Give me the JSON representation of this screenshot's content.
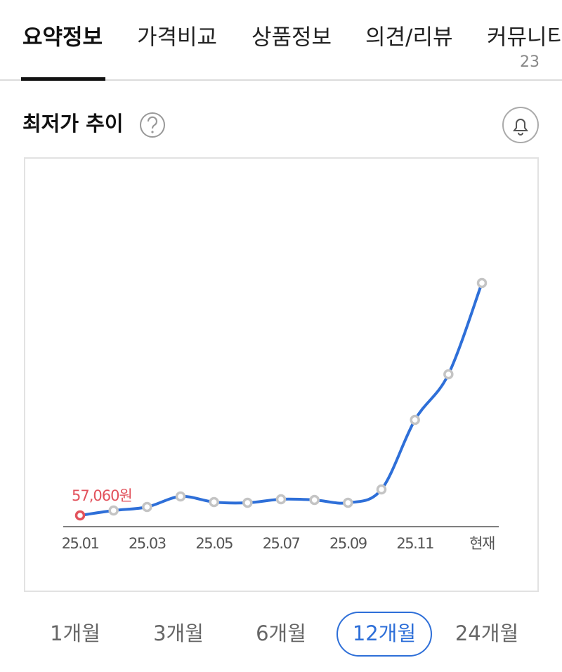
{
  "tabs": [
    {
      "label": "요약정보"
    },
    {
      "label": "가격비교"
    },
    {
      "label": "상품정보"
    },
    {
      "label": "의견/리뷰"
    },
    {
      "label": "커뮤니티",
      "count": "23"
    }
  ],
  "section_title": "최저가 추이",
  "periods": [
    "1개월",
    "3개월",
    "6개월",
    "12개월",
    "24개월"
  ],
  "chart_data": {
    "type": "line",
    "categories": [
      "25.01",
      null,
      "25.03",
      null,
      "25.05",
      null,
      "25.07",
      null,
      "25.09",
      null,
      "25.11",
      null,
      "현재"
    ],
    "values": [
      57060,
      58460,
      59460,
      62460,
      60860,
      60660,
      61660,
      61460,
      60660,
      64460,
      84260,
      97260,
      123260
    ],
    "value_labels": [
      "57,060원",
      null,
      null,
      null,
      null,
      null,
      null,
      null,
      null,
      null,
      null,
      null,
      null
    ],
    "color": "#2e6fd8",
    "marker_color": "#c4c4c4",
    "highlight_color": "#e2525c"
  }
}
